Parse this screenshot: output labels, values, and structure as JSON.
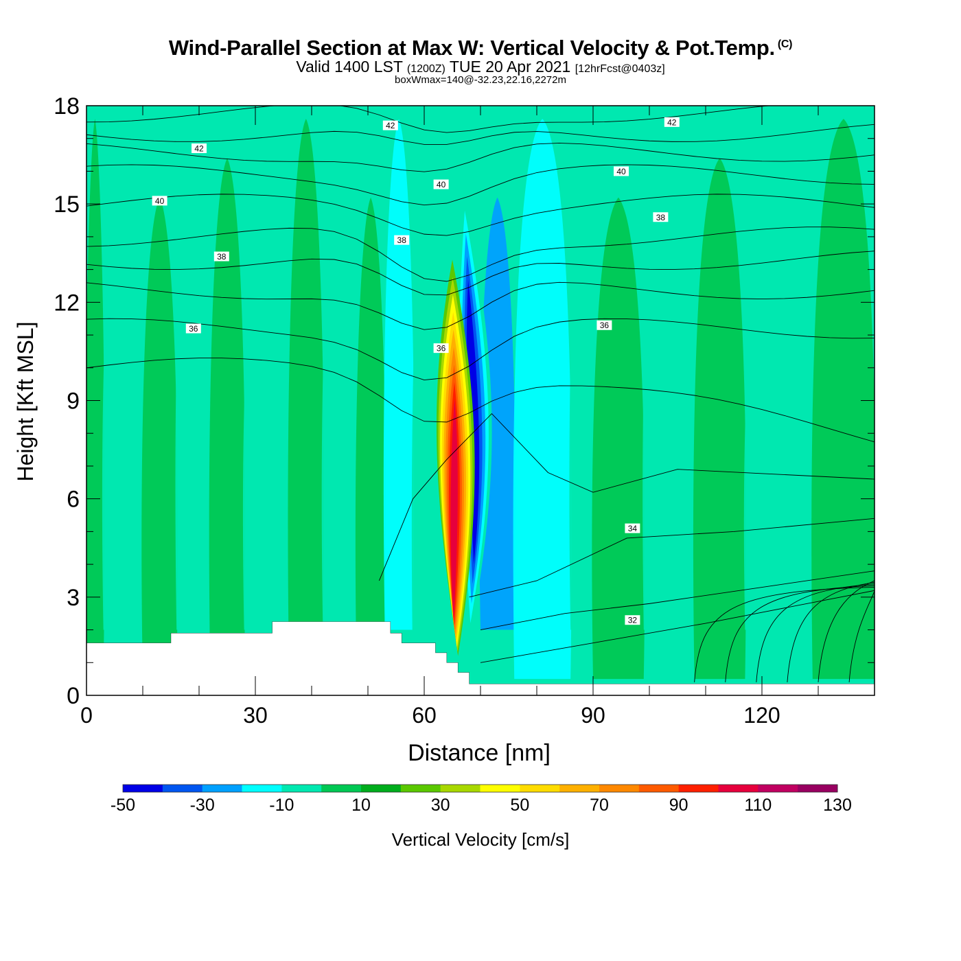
{
  "header": {
    "title": "Wind-Parallel Section at Max W: Vertical Velocity & Pot.Temp.",
    "copyright": "(C)",
    "subtitle_main": "Valid 1400 LST",
    "subtitle_utc": "(1200Z)",
    "subtitle_date": "TUE 20 Apr 2021",
    "subtitle_fcst": "[12hrFcst@0403z]",
    "box_info": "boxWmax=140@-32.23,22.16,2272m"
  },
  "chart_data": {
    "type": "heatmap",
    "title": "Wind-Parallel Section at Max W: Vertical Velocity & Pot.Temp.",
    "xlabel": "Distance [nm]",
    "ylabel": "Height [Kft MSL]",
    "xlim": [
      0,
      140
    ],
    "ylim": [
      0,
      18
    ],
    "x_ticks": [
      "0",
      "30",
      "60",
      "90",
      "120"
    ],
    "y_ticks": [
      "0",
      "3",
      "6",
      "9",
      "12",
      "15",
      "18"
    ],
    "colorbar": {
      "label": "Vertical Velocity [cm/s]",
      "levels": [
        -50,
        -40,
        -30,
        -20,
        -10,
        0,
        10,
        20,
        30,
        40,
        50,
        60,
        70,
        80,
        90,
        100,
        110,
        120,
        130
      ],
      "tick_labels": [
        "-50",
        "-30",
        "-10",
        "10",
        "30",
        "50",
        "70",
        "90",
        "110",
        "130"
      ],
      "colors": [
        "#0000e6",
        "#0055f0",
        "#00a0ff",
        "#00ffff",
        "#00e8b0",
        "#00c853",
        "#00ad1c",
        "#5ac800",
        "#a8d800",
        "#ffff00",
        "#ffdc00",
        "#ffb000",
        "#ff8800",
        "#ff5a00",
        "#ff1f00",
        "#e6003c",
        "#c00060",
        "#980060"
      ]
    },
    "background_band": "#00e8b0",
    "w_bands": [
      {
        "x": [
          0,
          3
        ],
        "bin": 5
      },
      {
        "x": [
          3,
          10
        ],
        "bin": 4
      },
      {
        "x": [
          10,
          16
        ],
        "bin": 5
      },
      {
        "x": [
          16,
          22
        ],
        "bin": 4
      },
      {
        "x": [
          22,
          28
        ],
        "bin": 5
      },
      {
        "x": [
          28,
          36
        ],
        "bin": 4
      },
      {
        "x": [
          36,
          42
        ],
        "bin": 5
      },
      {
        "x": [
          42,
          48
        ],
        "bin": 4
      },
      {
        "x": [
          48,
          53
        ],
        "bin": 5
      },
      {
        "x": [
          53,
          58
        ],
        "bin": 3
      },
      {
        "x": [
          58,
          63
        ],
        "bin": 4
      },
      {
        "x": [
          70,
          76
        ],
        "bin": 2
      },
      {
        "x": [
          76,
          86
        ],
        "bin": 3
      },
      {
        "x": [
          86,
          90
        ],
        "bin": 4
      },
      {
        "x": [
          90,
          99
        ],
        "bin": 5
      },
      {
        "x": [
          99,
          108
        ],
        "bin": 4
      },
      {
        "x": [
          108,
          117
        ],
        "bin": 5
      },
      {
        "x": [
          117,
          129
        ],
        "bin": 4
      },
      {
        "x": [
          129,
          140
        ],
        "bin": 5
      }
    ],
    "updraft_core": {
      "base_x": 66,
      "base_y": 1.2,
      "top_x": 65,
      "top_y": 13.3,
      "max_value": 140,
      "bins": [
        7,
        8,
        9,
        10,
        11,
        12,
        13,
        14,
        15
      ]
    },
    "downdraft_core": {
      "base_x": 68,
      "base_y": 1.6,
      "top_x": 67,
      "top_y": 15.5,
      "min_value": -50,
      "bins": [
        4,
        3,
        2,
        1,
        0
      ]
    },
    "theta_contours": [
      {
        "level": 32,
        "label": "32",
        "label_x": 97,
        "label_y": 2.3
      },
      {
        "level": 34,
        "label": "34",
        "label_x": 97,
        "label_y": 5.1
      },
      {
        "level": 36,
        "label": "36",
        "label_x": 19,
        "label_y": 11.2
      },
      {
        "level": 36,
        "label": "36",
        "label_x": 63,
        "label_y": 10.6
      },
      {
        "level": 36,
        "label": "36",
        "label_x": 92,
        "label_y": 11.3
      },
      {
        "level": 38,
        "label": "38",
        "label_x": 24,
        "label_y": 13.4
      },
      {
        "level": 38,
        "label": "38",
        "label_x": 56,
        "label_y": 13.9
      },
      {
        "level": 38,
        "label": "38",
        "label_x": 102,
        "label_y": 14.6
      },
      {
        "level": 40,
        "label": "40",
        "label_x": 13,
        "label_y": 15.1
      },
      {
        "level": 40,
        "label": "40",
        "label_x": 63,
        "label_y": 15.6
      },
      {
        "level": 40,
        "label": "40",
        "label_x": 95,
        "label_y": 16.0
      },
      {
        "level": 42,
        "label": "42",
        "label_x": 20,
        "label_y": 16.7
      },
      {
        "level": 42,
        "label": "42",
        "label_x": 54,
        "label_y": 17.4
      },
      {
        "level": 42,
        "label": "42",
        "label_x": 104,
        "label_y": 17.5
      }
    ],
    "terrain": [
      [
        0,
        1.6
      ],
      [
        15,
        1.6
      ],
      [
        15,
        1.9
      ],
      [
        33,
        1.9
      ],
      [
        33,
        2.25
      ],
      [
        54,
        2.25
      ],
      [
        54,
        1.9
      ],
      [
        56,
        1.9
      ],
      [
        56,
        1.6
      ],
      [
        62,
        1.6
      ],
      [
        62,
        1.3
      ],
      [
        64,
        1.3
      ],
      [
        64,
        1.0
      ],
      [
        66,
        1.0
      ],
      [
        66,
        0.7
      ],
      [
        68,
        0.7
      ],
      [
        68,
        0.35
      ],
      [
        140,
        0.35
      ]
    ]
  }
}
